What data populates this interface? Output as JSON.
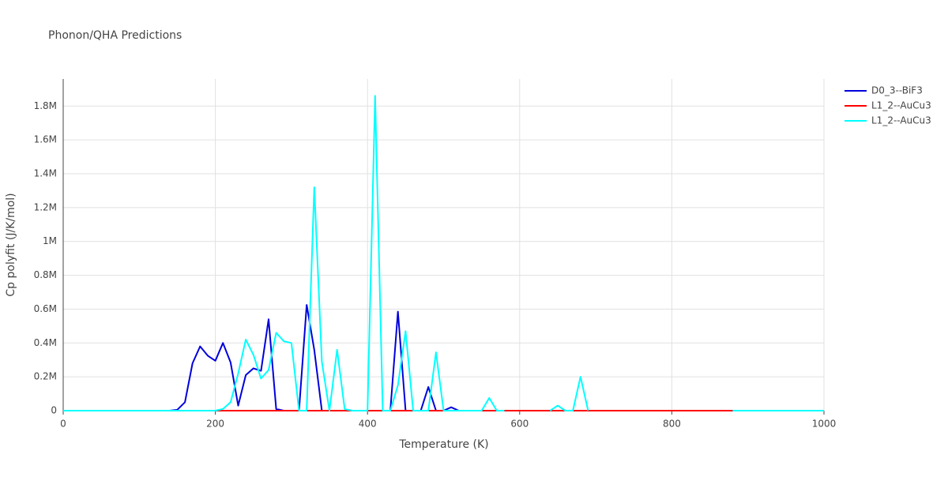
{
  "chart_data": {
    "type": "line",
    "title": "Phonon/QHA Predictions",
    "x_label": "Temperature (K)",
    "y_label": "Cp polyfit (J/K/mol)",
    "x": [
      0,
      10,
      20,
      30,
      40,
      50,
      60,
      70,
      80,
      90,
      100,
      110,
      120,
      130,
      140,
      150,
      160,
      170,
      180,
      190,
      200,
      210,
      220,
      230,
      240,
      250,
      260,
      270,
      280,
      290,
      300,
      310,
      320,
      330,
      340,
      350,
      360,
      370,
      380,
      390,
      400,
      410,
      420,
      430,
      440,
      450,
      460,
      470,
      480,
      490,
      500,
      510,
      520,
      530,
      540,
      550,
      560,
      570,
      580,
      590,
      600,
      610,
      620,
      630,
      640,
      650,
      660,
      670,
      680,
      690,
      700,
      710,
      720,
      730,
      740,
      750,
      760,
      770,
      780,
      790,
      800,
      810,
      820,
      830,
      840,
      850,
      860,
      870,
      880,
      890,
      900,
      910,
      920,
      930,
      940,
      950,
      960,
      970,
      980,
      990,
      1000
    ],
    "series": [
      {
        "name": "D0_3--BiF3",
        "color": "#0000dd",
        "values": [
          0,
          0,
          0,
          0,
          0,
          0,
          0,
          0,
          0,
          0,
          0,
          0,
          0,
          0,
          0,
          5000,
          50000,
          280000,
          380000,
          325000,
          295000,
          400000,
          285000,
          30000,
          210000,
          250000,
          235000,
          540000,
          10000,
          0,
          0,
          0,
          625000,
          360000,
          0,
          0,
          0,
          0,
          0,
          0,
          0,
          0,
          0,
          0,
          585000,
          0,
          0,
          0,
          140000,
          0,
          0,
          20000,
          0,
          0,
          0,
          0,
          0,
          0,
          0,
          0,
          0,
          0,
          0,
          0,
          0,
          0,
          0,
          0,
          0,
          0,
          0,
          0,
          0,
          0,
          0,
          0,
          0,
          0,
          0,
          0,
          0,
          0,
          0,
          0,
          0,
          0,
          0,
          0,
          0,
          0,
          0,
          0,
          0,
          0,
          0,
          0,
          0,
          0,
          0,
          0,
          0
        ]
      },
      {
        "name": "L1_2--AuCu3",
        "color": "#ff0000",
        "values": [
          0,
          0,
          0,
          0,
          0,
          0,
          0,
          0,
          0,
          0,
          0,
          0,
          0,
          0,
          0,
          0,
          0,
          0,
          0,
          0,
          0,
          0,
          0,
          0,
          0,
          0,
          0,
          0,
          0,
          0,
          0,
          0,
          0,
          0,
          0,
          0,
          0,
          0,
          0,
          0,
          0,
          0,
          0,
          0,
          0,
          0,
          0,
          0,
          0,
          0,
          0,
          0,
          0,
          0,
          0,
          0,
          0,
          0,
          0,
          0,
          0,
          0,
          0,
          0,
          0,
          0,
          0,
          0,
          0,
          0,
          0,
          0,
          0,
          0,
          0,
          0,
          0,
          0,
          0,
          0,
          0,
          0,
          0,
          0,
          0,
          0,
          0,
          0,
          0,
          null,
          null,
          null,
          null,
          null,
          null,
          null,
          null,
          null,
          null,
          null,
          null
        ]
      },
      {
        "name": "L1_2--AuCu3",
        "color": "#00ffff",
        "values": [
          0,
          0,
          0,
          0,
          0,
          0,
          0,
          0,
          0,
          0,
          0,
          0,
          0,
          0,
          0,
          0,
          0,
          0,
          0,
          0,
          0,
          10000,
          50000,
          220000,
          420000,
          330000,
          190000,
          240000,
          460000,
          410000,
          400000,
          0,
          0,
          1320000,
          290000,
          0,
          360000,
          10000,
          0,
          0,
          0,
          1860000,
          0,
          0,
          150000,
          470000,
          0,
          0,
          0,
          345000,
          0,
          0,
          0,
          0,
          0,
          0,
          75000,
          0,
          0,
          null,
          null,
          null,
          null,
          null,
          0,
          30000,
          0,
          0,
          200000,
          0,
          null,
          null,
          null,
          null,
          null,
          null,
          null,
          null,
          null,
          null,
          null,
          null,
          null,
          null,
          null,
          null,
          null,
          null,
          0,
          0,
          0,
          0,
          0,
          0,
          0,
          0,
          0,
          0,
          0,
          0,
          0
        ]
      }
    ],
    "xlim": [
      0,
      1000
    ],
    "xticks": [
      0,
      200,
      400,
      600,
      800,
      1000
    ],
    "ylim": [
      0,
      1960000
    ],
    "yticks": [
      0,
      {
        "value": 200000,
        "label": "0.2M"
      },
      {
        "value": 400000,
        "label": "0.4M"
      },
      {
        "value": 600000,
        "label": "0.6M"
      },
      {
        "value": 800000,
        "label": "0.8M"
      },
      {
        "value": 1000000,
        "label": "1M"
      },
      {
        "value": 1200000,
        "label": "1.2M"
      },
      {
        "value": 1400000,
        "label": "1.4M"
      },
      {
        "value": 1600000,
        "label": "1.6M"
      },
      {
        "value": 1800000,
        "label": "1.8M"
      }
    ],
    "grid": true
  }
}
